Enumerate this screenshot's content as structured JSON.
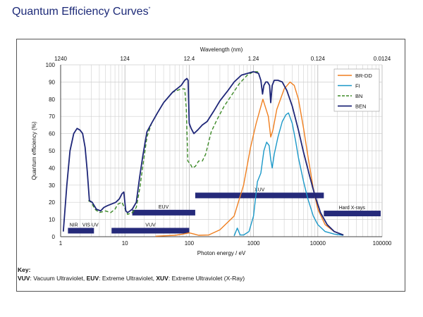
{
  "page": {
    "title": "Quantum Efficiency Curves",
    "title_sup": "*",
    "key_title": "Key:",
    "key_parts": [
      {
        "bold": "VUV",
        "text": ": Vacuum Ultraviolet, "
      },
      {
        "bold": "EUV",
        "text": ": Extreme Ultraviolet, "
      },
      {
        "bold": "XUV",
        "text": ": Extreme Ultraviolet (X-Ray)"
      }
    ]
  },
  "colors": {
    "BR-DD": "#f07f1f",
    "FI": "#1a98c8",
    "BN": "#3c8a27",
    "BEN": "#1e2678",
    "band": "#252a7a",
    "grid": "#cfcfcf",
    "title": "#1d2a78"
  },
  "chart_data": {
    "type": "line",
    "x_scale": "log",
    "xlim": [
      1,
      100000
    ],
    "ylim": [
      0,
      100
    ],
    "xlabel": "Photon energy / eV",
    "ylabel": "Quantum efficiency (%)",
    "x_ticks": [
      "1",
      "10",
      "100",
      "1000",
      "10000",
      "100000"
    ],
    "y_ticks": [
      "0",
      "10",
      "20",
      "30",
      "40",
      "50",
      "60",
      "70",
      "80",
      "90",
      "100"
    ],
    "top_axis_label": "Wavelength (nm)",
    "top_ticks": [
      "1240",
      "124",
      "12.4",
      "1.24",
      "0.124",
      "0.0124"
    ],
    "grid": true,
    "legend_position": "top-right",
    "series": [
      {
        "name": "BR-DD",
        "dash": "solid",
        "points": [
          [
            30,
            0.3
          ],
          [
            60,
            0.8
          ],
          [
            80,
            1.5
          ],
          [
            100,
            2.2
          ],
          [
            120,
            1.5
          ],
          [
            140,
            0.8
          ],
          [
            200,
            1
          ],
          [
            300,
            4
          ],
          [
            500,
            12
          ],
          [
            700,
            30
          ],
          [
            900,
            52
          ],
          [
            1100,
            66
          ],
          [
            1400,
            80
          ],
          [
            1700,
            70
          ],
          [
            1850,
            58
          ],
          [
            2000,
            62
          ],
          [
            2300,
            74
          ],
          [
            3000,
            86
          ],
          [
            3700,
            90
          ],
          [
            4300,
            88
          ],
          [
            5000,
            80
          ],
          [
            6000,
            63
          ],
          [
            7000,
            47
          ],
          [
            8500,
            28
          ],
          [
            10000,
            16
          ],
          [
            13000,
            7
          ],
          [
            18000,
            3
          ],
          [
            25000,
            1
          ]
        ]
      },
      {
        "name": "FI",
        "dash": "solid",
        "points": [
          [
            500,
            0.5
          ],
          [
            560,
            5
          ],
          [
            620,
            1
          ],
          [
            700,
            1
          ],
          [
            850,
            3
          ],
          [
            1000,
            12
          ],
          [
            1150,
            32
          ],
          [
            1300,
            37
          ],
          [
            1450,
            50
          ],
          [
            1600,
            55
          ],
          [
            1750,
            53
          ],
          [
            1850,
            45
          ],
          [
            1950,
            40
          ],
          [
            2100,
            48
          ],
          [
            2400,
            58
          ],
          [
            2800,
            67
          ],
          [
            3200,
            71
          ],
          [
            3500,
            72
          ],
          [
            4000,
            66
          ],
          [
            4500,
            56
          ],
          [
            5000,
            46
          ],
          [
            6000,
            32
          ],
          [
            7000,
            22
          ],
          [
            8500,
            12
          ],
          [
            10000,
            7
          ],
          [
            13000,
            3
          ],
          [
            18000,
            1.5
          ],
          [
            25000,
            0.8
          ]
        ]
      },
      {
        "name": "BN",
        "dash": "dashed",
        "points": [
          [
            2.7,
            21
          ],
          [
            3,
            20
          ],
          [
            3.4,
            16
          ],
          [
            4,
            14
          ],
          [
            5,
            15
          ],
          [
            6,
            14
          ],
          [
            7,
            16
          ],
          [
            7.8,
            19
          ],
          [
            9,
            20
          ],
          [
            11,
            13
          ],
          [
            13,
            14
          ],
          [
            15,
            17
          ],
          [
            17,
            28
          ],
          [
            19,
            41
          ],
          [
            22,
            58
          ],
          [
            26,
            66
          ],
          [
            32,
            72
          ],
          [
            40,
            78
          ],
          [
            55,
            84
          ],
          [
            75,
            86
          ],
          [
            85,
            86
          ],
          [
            90,
            75
          ],
          [
            95,
            44
          ],
          [
            100,
            43
          ],
          [
            105,
            42
          ],
          [
            112,
            40
          ],
          [
            125,
            41
          ],
          [
            140,
            44
          ],
          [
            160,
            44
          ],
          [
            180,
            48
          ],
          [
            220,
            61
          ],
          [
            270,
            68
          ],
          [
            350,
            76
          ],
          [
            450,
            82
          ],
          [
            600,
            89
          ],
          [
            800,
            94
          ],
          [
            1000,
            96
          ],
          [
            1150,
            96
          ],
          [
            1250,
            95
          ]
        ]
      },
      {
        "name": "BEN",
        "dash": "solid",
        "points": [
          [
            1.1,
            3
          ],
          [
            1.25,
            30
          ],
          [
            1.4,
            50
          ],
          [
            1.6,
            60
          ],
          [
            1.8,
            63
          ],
          [
            2,
            62
          ],
          [
            2.2,
            60
          ],
          [
            2.4,
            52
          ],
          [
            2.6,
            38
          ],
          [
            2.8,
            21
          ],
          [
            3.1,
            20
          ],
          [
            3.6,
            16
          ],
          [
            4.2,
            15
          ],
          [
            4.7,
            17
          ],
          [
            5.3,
            18
          ],
          [
            6.2,
            19
          ],
          [
            7.2,
            20
          ],
          [
            8.2,
            22
          ],
          [
            9,
            25
          ],
          [
            9.6,
            26
          ],
          [
            10.3,
            15
          ],
          [
            11,
            14
          ],
          [
            13,
            16
          ],
          [
            15,
            20
          ],
          [
            17,
            35
          ],
          [
            19,
            47
          ],
          [
            22,
            61
          ],
          [
            26,
            66
          ],
          [
            32,
            72
          ],
          [
            40,
            78
          ],
          [
            55,
            84
          ],
          [
            75,
            88
          ],
          [
            85,
            91
          ],
          [
            92,
            92
          ],
          [
            96,
            91
          ],
          [
            100,
            66
          ],
          [
            107,
            63
          ],
          [
            118,
            60
          ],
          [
            135,
            62
          ],
          [
            160,
            65
          ],
          [
            190,
            67
          ],
          [
            240,
            73
          ],
          [
            300,
            79
          ],
          [
            400,
            85
          ],
          [
            500,
            90
          ],
          [
            650,
            94
          ],
          [
            800,
            95
          ],
          [
            1000,
            96
          ],
          [
            1200,
            95
          ],
          [
            1300,
            91
          ],
          [
            1380,
            83
          ],
          [
            1450,
            88
          ],
          [
            1550,
            90
          ],
          [
            1650,
            90
          ],
          [
            1780,
            88
          ],
          [
            1850,
            78
          ],
          [
            1950,
            88
          ],
          [
            2100,
            91
          ],
          [
            2400,
            91
          ],
          [
            2800,
            90
          ],
          [
            3300,
            85
          ],
          [
            4000,
            76
          ],
          [
            5000,
            62
          ],
          [
            6000,
            49
          ],
          [
            7500,
            35
          ],
          [
            9000,
            24
          ],
          [
            11000,
            14
          ],
          [
            14000,
            7
          ],
          [
            18000,
            3
          ],
          [
            25000,
            1
          ]
        ]
      }
    ],
    "bands": [
      {
        "label": "NIR",
        "x0": 1.3,
        "x1": 3.3,
        "y": 3.5
      },
      {
        "label": "VIS UV",
        "x0": null,
        "x1": null,
        "y": null
      },
      {
        "label": "VUV",
        "x0": 6.2,
        "x1": 100,
        "y": 3.5
      },
      {
        "label": "EUV",
        "x0": 13,
        "x1": 124,
        "y": 14
      },
      {
        "label": "XUV",
        "x0": 124,
        "x1": 12400,
        "y": 24
      },
      {
        "label": "Hard X-rays",
        "x0": 12400,
        "x1": 95000,
        "y": 13.5
      }
    ]
  }
}
